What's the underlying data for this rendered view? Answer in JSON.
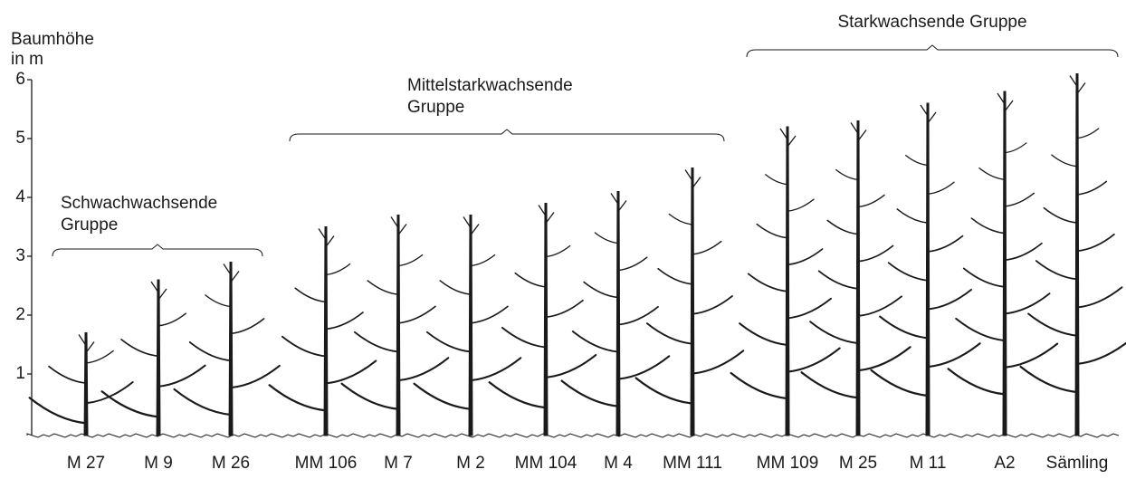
{
  "chart_data": {
    "type": "tree",
    "y_label_lines": [
      "Baumhöhe",
      "in m"
    ],
    "ylim": [
      0,
      6
    ],
    "yticks": [
      1,
      2,
      3,
      4,
      5,
      6
    ],
    "categories": [
      "M 27",
      "M 9",
      "M 26",
      "MM 106",
      "M 7",
      "M 2",
      "MM 104",
      "M 4",
      "MM 111",
      "MM 109",
      "M 25",
      "M 11",
      "A2",
      "Sämling"
    ],
    "values": [
      1.7,
      2.6,
      2.9,
      3.5,
      3.7,
      3.7,
      3.9,
      4.1,
      4.5,
      5.2,
      5.3,
      5.6,
      5.8,
      6.1
    ],
    "color": "#1a1a1a",
    "groups": [
      {
        "label_lines": [
          "Schwachwachsende",
          "Gruppe"
        ]
      },
      {
        "label_lines": [
          "Mittelstarkwachsende",
          "Gruppe"
        ]
      },
      {
        "label_lines": [
          "Starkwachsende Gruppe"
        ]
      }
    ]
  }
}
